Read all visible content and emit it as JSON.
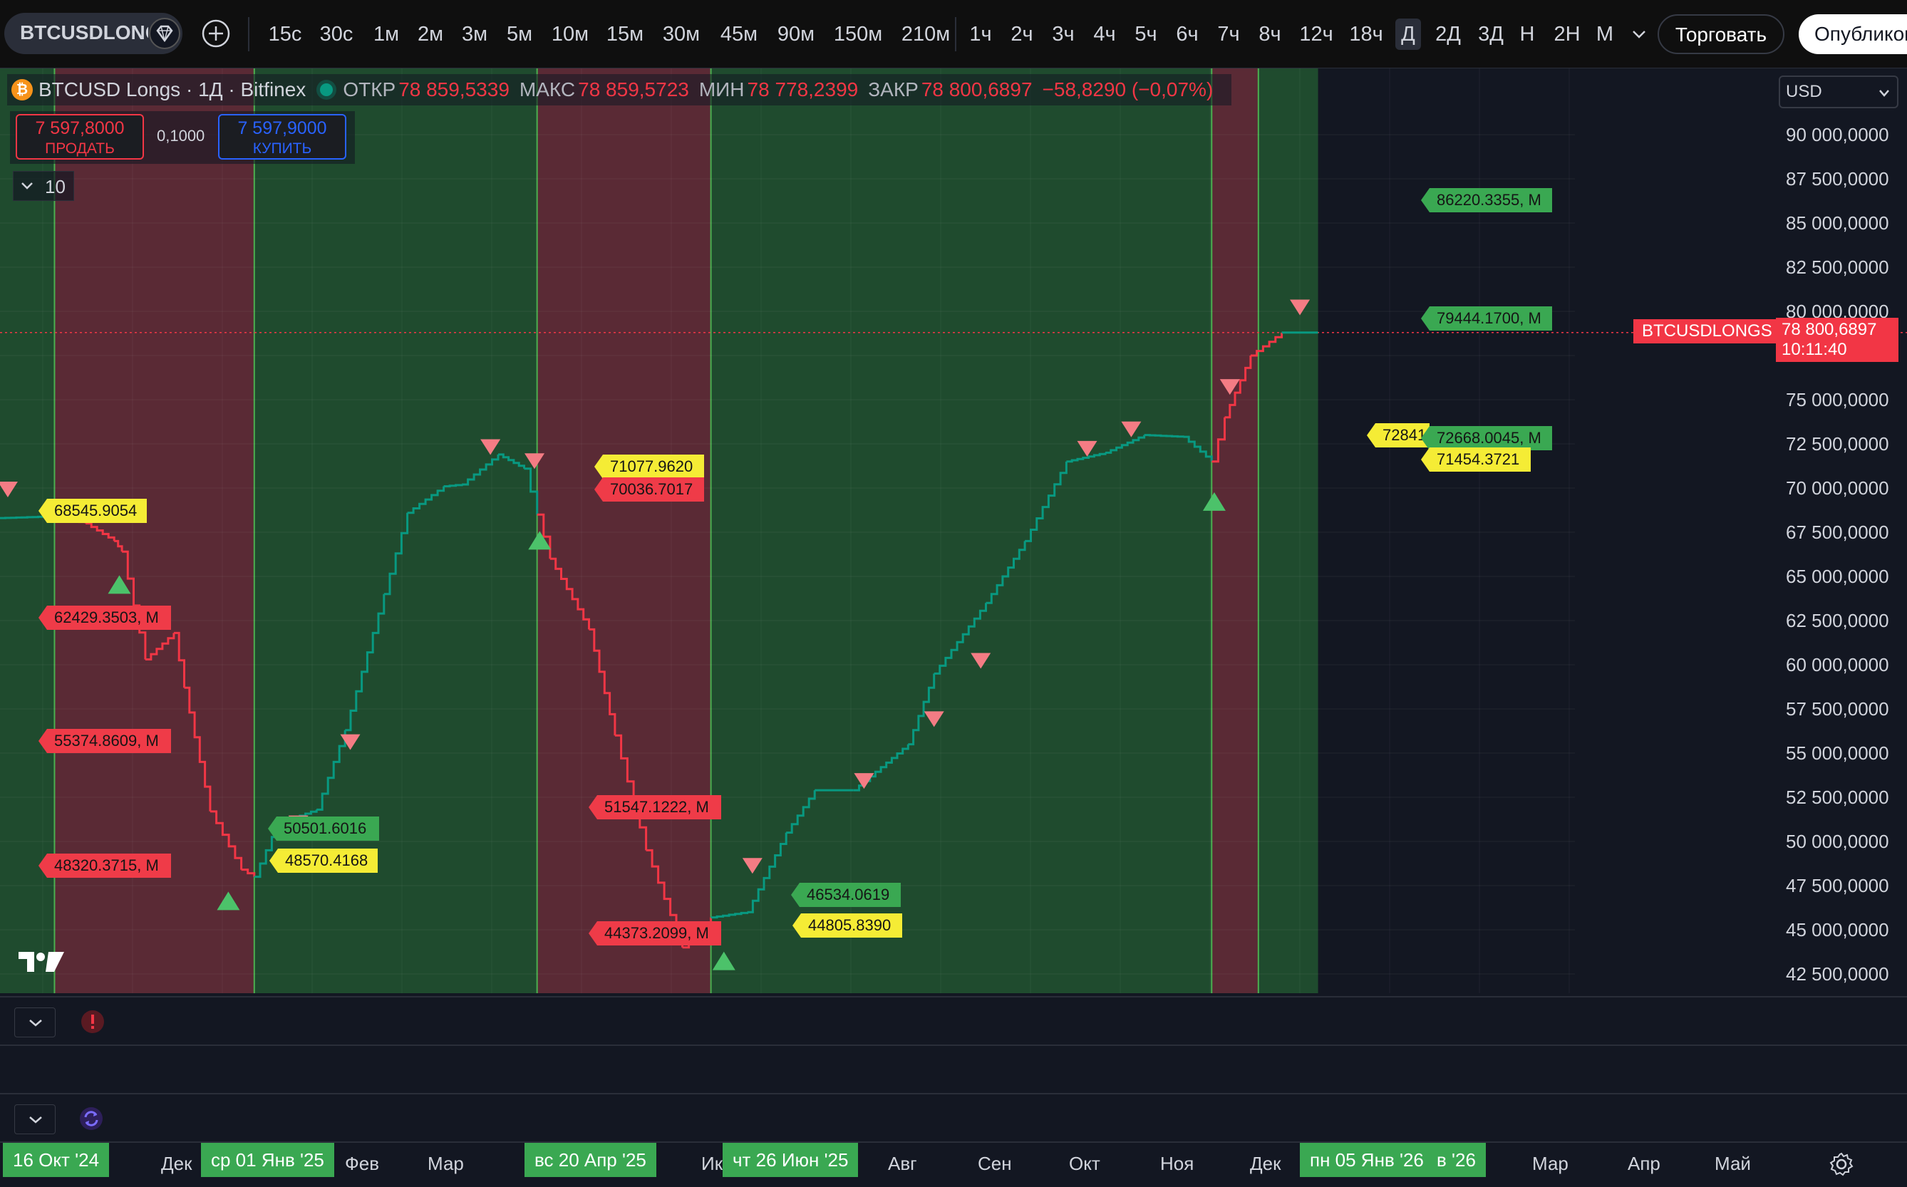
{
  "header": {
    "symbol": "BTCUSDLONGS",
    "timeframes": [
      "15с",
      "30с",
      "1м",
      "2м",
      "3м",
      "5м",
      "10м",
      "15м",
      "30м",
      "45м",
      "90м",
      "150м",
      "210м",
      "1ч",
      "2ч",
      "3ч",
      "4ч",
      "5ч",
      "6ч",
      "7ч",
      "8ч",
      "12ч",
      "18ч",
      "Д",
      "2Д",
      "3Д",
      "Н",
      "2Н",
      "М"
    ],
    "active_timeframe": "Д",
    "trade_label": "Торговать",
    "publish_label": "Опубликовать"
  },
  "legend": {
    "title": "BTCUSD Longs · 1Д · Bitfinex",
    "open_label": "ОТКР",
    "open": "78 859,5339",
    "high_label": "МАКС",
    "high": "78 859,5723",
    "low_label": "МИН",
    "low": "78 778,2399",
    "close_label": "ЗАКР",
    "close": "78 800,6897",
    "change": "−58,8290 (−0,07%)"
  },
  "trade_panel": {
    "sell_price": "7 597,8000",
    "sell_label": "ПРОДАТЬ",
    "spread": "0,1000",
    "buy_price": "7 597,9000",
    "buy_label": "КУПИТЬ"
  },
  "indicators_count": "10",
  "currency": "USD",
  "price_axis": [
    "90 000,0000",
    "87 500,0000",
    "85 000,0000",
    "82 500,0000",
    "80 000,0000",
    "75 000,0000",
    "72 500,0000",
    "70 000,0000",
    "67 500,0000",
    "65 000,0000",
    "62 500,0000",
    "60 000,0000",
    "57 500,0000",
    "55 000,0000",
    "52 500,0000",
    "50 000,0000",
    "47 500,0000",
    "45 000,0000",
    "42 500,0000"
  ],
  "current_price": {
    "symbol_tag": "BTCUSDLONGS",
    "price": "78 800,6897",
    "countdown": "10:11:40"
  },
  "level_labels": [
    {
      "text": "68545.9054",
      "color": "yellow"
    },
    {
      "text": "62429.3503, M",
      "color": "red"
    },
    {
      "text": "55374.8609, M",
      "color": "red"
    },
    {
      "text": "48320.3715, M",
      "color": "red"
    },
    {
      "text": "50501.6016",
      "color": "green"
    },
    {
      "text": "48570.4168",
      "color": "yellow"
    },
    {
      "text": "71077.9620",
      "color": "yellow"
    },
    {
      "text": "70036.7017",
      "color": "red"
    },
    {
      "text": "51547.1222, M",
      "color": "red"
    },
    {
      "text": "44373.2099, M",
      "color": "red"
    },
    {
      "text": "46534.0619",
      "color": "green"
    },
    {
      "text": "44805.8390",
      "color": "yellow"
    },
    {
      "text": "86220.3355, M",
      "color": "green"
    },
    {
      "text": "79444.1700, M",
      "color": "green"
    },
    {
      "text": "72841",
      "color": "yellow"
    },
    {
      "text": "72668.0045, M",
      "color": "green"
    },
    {
      "text": "71454.3721",
      "color": "yellow"
    }
  ],
  "time_axis": [
    {
      "text": "16 Окт '24",
      "highlight": true
    },
    {
      "text": "Дек",
      "highlight": false
    },
    {
      "text": "ср 01 Янв '25",
      "highlight": true
    },
    {
      "text": "Фев",
      "highlight": false
    },
    {
      "text": "Мар",
      "highlight": false
    },
    {
      "text": "вс 20 Апр '25",
      "highlight": true
    },
    {
      "text": "Ик",
      "highlight": false
    },
    {
      "text": "чт 26 Июн '25",
      "highlight": true
    },
    {
      "text": "Авг",
      "highlight": false
    },
    {
      "text": "Сен",
      "highlight": false
    },
    {
      "text": "Окт",
      "highlight": false
    },
    {
      "text": "Ноя",
      "highlight": false
    },
    {
      "text": "Дек",
      "highlight": false
    },
    {
      "text": "пн 05 Янв '26",
      "highlight": true
    },
    {
      "text": "в '26",
      "highlight": true
    },
    {
      "text": "Мар",
      "highlight": false
    },
    {
      "text": "Апр",
      "highlight": false
    },
    {
      "text": "Май",
      "highlight": false
    }
  ],
  "colors": {
    "bg": "#131722",
    "up": "#089981",
    "down": "#f23645",
    "zone_green": "#1f4b2e",
    "zone_red": "#5a2a35",
    "label_yellow": "#f5ec35"
  },
  "chart_data": {
    "type": "line",
    "series": [
      {
        "x": [
          "2024-09-25",
          "2024-10-16",
          "2024-10-28",
          "2024-11-08",
          "2024-11-11",
          "2024-11-20",
          "2024-12-01",
          "2024-12-05",
          "2024-12-15",
          "2024-12-27",
          "2025-01-01",
          "2025-01-10",
          "2025-01-25",
          "2025-02-05",
          "2025-02-20",
          "2025-03-01",
          "2025-03-15",
          "2025-03-22",
          "2025-04-05",
          "2025-04-15",
          "2025-04-20",
          "2025-04-25",
          "2025-05-10",
          "2025-05-20",
          "2025-06-01",
          "2025-06-15",
          "2025-06-20",
          "2025-06-26",
          "2025-07-10",
          "2025-07-25",
          "2025-08-05",
          "2025-08-20",
          "2025-09-10",
          "2025-09-20",
          "2025-10-10",
          "2025-10-25",
          "2025-11-10",
          "2025-11-25",
          "2025-12-10",
          "2025-12-25",
          "2026-01-05",
          "2026-01-10",
          "2026-01-20",
          "2026-02-01",
          "2026-02-15"
        ],
        "y": [
          68300,
          68400,
          68000,
          67000,
          66400,
          60300,
          61800,
          58700,
          51700,
          48400,
          48000,
          51000,
          51800,
          56300,
          64000,
          68600,
          70100,
          70200,
          71900,
          71100,
          68500,
          66000,
          62000,
          56000,
          49500,
          44000,
          44500,
          45700,
          46000,
          50500,
          52900,
          52900,
          55500,
          59500,
          63500,
          67000,
          71500,
          72000,
          73000,
          72900,
          71500,
          74000,
          77500,
          78800,
          78800
        ]
      }
    ],
    "zones": [
      {
        "from": "2024-10-16",
        "to": "2025-01-01",
        "color": "red"
      },
      {
        "from": "2025-01-01",
        "to": "2025-04-20",
        "color": "green"
      },
      {
        "from": "2025-04-20",
        "to": "2025-06-26",
        "color": "red"
      },
      {
        "from": "2025-06-26",
        "to": "2026-01-05",
        "color": "green"
      },
      {
        "from": "2026-01-05",
        "to": "2026-01-23",
        "color": "red"
      },
      {
        "from": "2026-01-23",
        "to": "2026-02-15",
        "color": "green"
      }
    ],
    "xlim": [
      "2024-09-25",
      "2026-05-25"
    ],
    "ylim": [
      41250,
      93750
    ],
    "grid": true
  }
}
